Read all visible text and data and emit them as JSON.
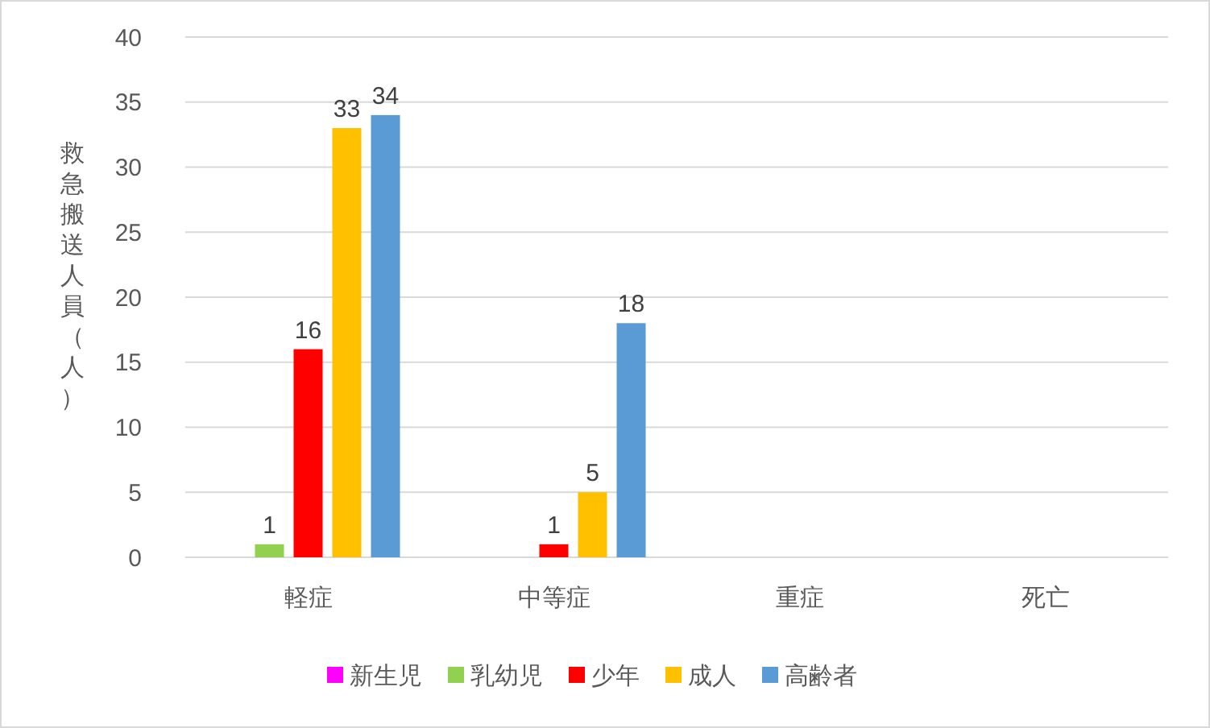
{
  "chart_data": {
    "type": "bar",
    "ylabel": "救急搬送人員（人）",
    "categories": [
      "軽症",
      "中等症",
      "重症",
      "死亡"
    ],
    "series": [
      {
        "name": "新生児",
        "color": "#ff00ff",
        "values": [
          null,
          null,
          null,
          null
        ]
      },
      {
        "name": "乳幼児",
        "color": "#92d050",
        "values": [
          1,
          null,
          null,
          null
        ],
        "value_labels": [
          "1",
          null,
          null,
          null
        ]
      },
      {
        "name": "少年",
        "color": "#ff0000",
        "values": [
          16,
          1,
          null,
          null
        ],
        "value_labels": [
          "16",
          "1",
          null,
          null
        ]
      },
      {
        "name": "成人",
        "color": "#ffc000",
        "values": [
          33,
          5,
          null,
          null
        ],
        "value_labels": [
          "33",
          "5",
          null,
          null
        ]
      },
      {
        "name": "高齢者",
        "color": "#5b9bd5",
        "values": [
          34,
          18,
          null,
          null
        ],
        "value_labels": [
          "34",
          "18",
          null,
          null
        ]
      }
    ],
    "ylim": [
      0,
      40
    ],
    "yticks": [
      0,
      5,
      10,
      15,
      20,
      25,
      30,
      35,
      40
    ],
    "grid": "y",
    "legend": "bottom"
  }
}
